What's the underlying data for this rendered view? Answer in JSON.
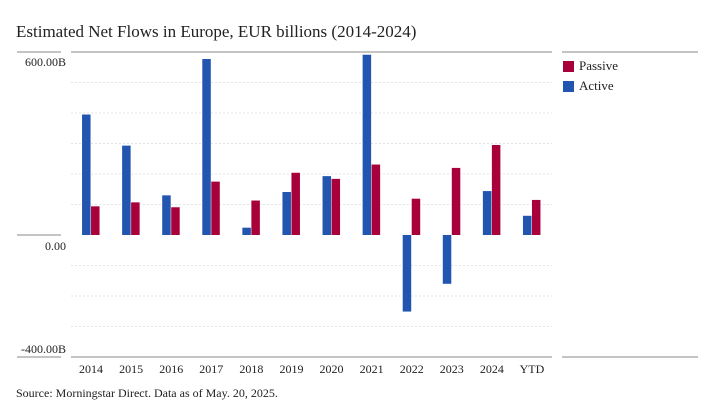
{
  "chart_data": {
    "type": "bar",
    "title": "Estimated Net Flows in Europe, EUR billions (2014-2024)",
    "source": "Source: Morningstar Direct. Data as of May. 20, 2025.",
    "categories": [
      "2014",
      "2015",
      "2016",
      "2017",
      "2018",
      "2019",
      "2020",
      "2021",
      "2022",
      "2023",
      "2024",
      "YTD"
    ],
    "series": [
      {
        "name": "Active",
        "color": "#2255b0",
        "values": [
          395,
          293,
          130,
          577,
          24,
          141,
          193,
          591,
          -251,
          -160,
          144,
          63
        ]
      },
      {
        "name": "Passive",
        "color": "#a8003a",
        "values": [
          94,
          107,
          91,
          175,
          113,
          204,
          184,
          231,
          119,
          220,
          295,
          115
        ]
      }
    ],
    "ylim": [
      -400,
      600
    ],
    "ytick_labels": [
      {
        "value": 600,
        "label": "600.00B"
      },
      {
        "value": 0,
        "label": "0.00"
      },
      {
        "value": -400,
        "label": "-400.00B"
      }
    ],
    "grid": true,
    "legend": "right",
    "legend_entries": [
      "Passive",
      "Active"
    ]
  }
}
